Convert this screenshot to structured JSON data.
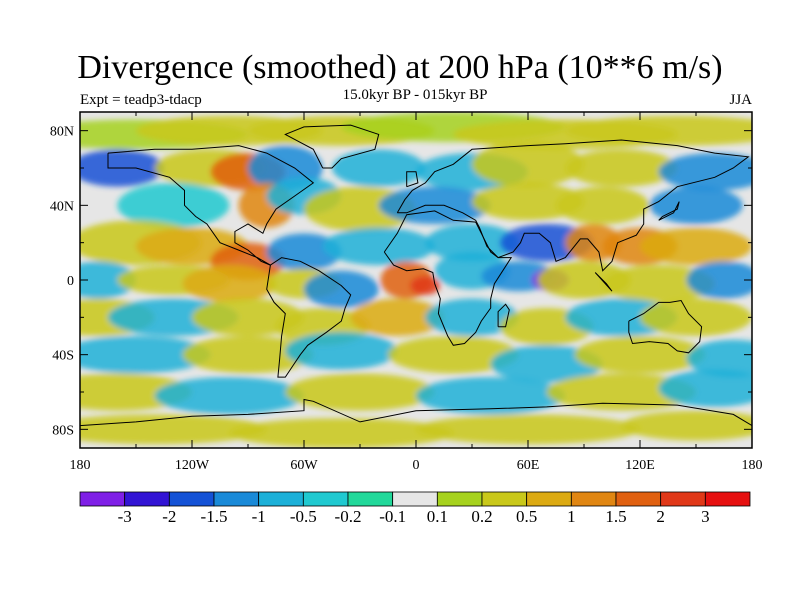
{
  "title": "Divergence (smoothed) at 200 hPa (10**6 m/s)",
  "subtitle_left": "Expt = teadp3-tdacp",
  "subtitle_center": "15.0kyr BP - 015kyr BP",
  "subtitle_right": "JJA",
  "lat_ticks": [
    "80N",
    "40N",
    "0",
    "40S",
    "80S"
  ],
  "lat_values": [
    80,
    40,
    0,
    -40,
    -80
  ],
  "lon_ticks": [
    "180",
    "120W",
    "60W",
    "0",
    "60E",
    "120E",
    "180"
  ],
  "lon_values": [
    -180,
    -120,
    -60,
    0,
    60,
    120,
    180
  ],
  "colorbar": {
    "levels": [
      "-3",
      "-2",
      "-1.5",
      "-1",
      "-0.5",
      "-0.2",
      "-0.1",
      "0.1",
      "0.2",
      "0.5",
      "1",
      "1.5",
      "2",
      "3"
    ],
    "colors": [
      "#7f1fe6",
      "#3214d4",
      "#1452d6",
      "#1a8ad8",
      "#1cb0d8",
      "#20c9d0",
      "#22d89a",
      "#e6e6e6",
      "#a6d21e",
      "#c9c81a",
      "#dcaa12",
      "#e08612",
      "#e06010",
      "#e03818",
      "#e61010"
    ]
  },
  "colors": {
    "land_line": "#000000",
    "background": "#ffffff"
  }
}
